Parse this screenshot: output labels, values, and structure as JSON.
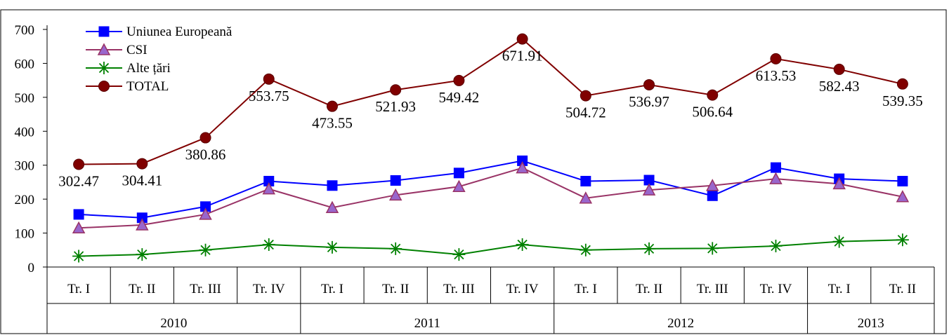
{
  "chart_data": {
    "type": "line",
    "caption": "",
    "quarters": [
      "Tr. I",
      "Tr. II",
      "Tr. III",
      "Tr. IV",
      "Tr. I",
      "Tr. II",
      "Tr. III",
      "Tr. IV",
      "Tr. I",
      "Tr. II",
      "Tr. III",
      "Tr. IV",
      "Tr. I",
      "Tr. II"
    ],
    "years": [
      {
        "label": "2010",
        "count": 4
      },
      {
        "label": "2011",
        "count": 4
      },
      {
        "label": "2012",
        "count": 4
      },
      {
        "label": "2013",
        "count": 2
      }
    ],
    "ylim": [
      0,
      700
    ],
    "yticks": [
      0,
      100,
      200,
      300,
      400,
      500,
      600,
      700
    ],
    "legend_position": "top-left",
    "series": [
      {
        "name": "Uniunea Europeană",
        "color": "#0000FF",
        "marker": "square",
        "values": [
          155,
          145,
          178,
          253,
          240,
          255,
          277,
          313,
          253,
          256,
          210,
          293,
          260,
          253
        ]
      },
      {
        "name": "CSI",
        "color": "#993366",
        "marker_fill": "#9966CC",
        "marker": "triangle",
        "values": [
          115,
          124,
          155,
          230,
          175,
          212,
          237,
          292,
          203,
          227,
          240,
          260,
          245,
          207
        ]
      },
      {
        "name": "Alte țări",
        "color": "#008000",
        "marker": "star",
        "values": [
          32,
          37,
          50,
          66,
          58,
          54,
          37,
          66,
          50,
          54,
          55,
          62,
          75,
          80
        ]
      },
      {
        "name": "TOTAL",
        "color": "#800000",
        "marker": "circle",
        "values": [
          302.47,
          304.41,
          380.86,
          553.75,
          473.55,
          521.93,
          549.42,
          671.91,
          504.72,
          536.97,
          506.64,
          613.53,
          582.43,
          539.35
        ],
        "labels": [
          "302.47",
          "304.41",
          "380.86",
          "553.75",
          "473.55",
          "521.93",
          "549.42",
          "671.91",
          "504.72",
          "536.97",
          "506.64",
          "613.53",
          "582.43",
          "539.35"
        ]
      }
    ]
  }
}
